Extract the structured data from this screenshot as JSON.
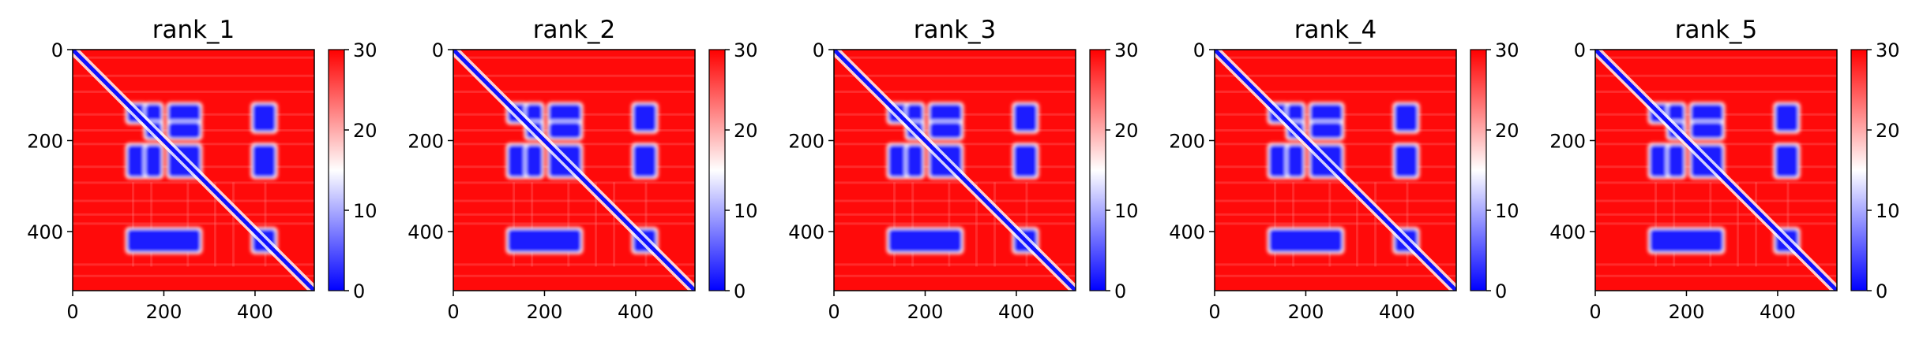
{
  "chart_data": [
    {
      "type": "heatmap",
      "title": "rank_1",
      "xlim": [
        0,
        530
      ],
      "ylim": [
        530,
        0
      ],
      "xticks": [
        0,
        200,
        400
      ],
      "yticks": [
        0,
        200,
        400
      ],
      "colorbar": {
        "cmap": "bwr",
        "min": 0,
        "max": 30,
        "ticks": [
          0,
          10,
          20,
          30
        ]
      },
      "low_distance_regions": [
        [
          120,
          160,
          120,
          160
        ],
        [
          120,
          180,
          160,
          195
        ],
        [
          120,
          160,
          210,
          280
        ],
        [
          120,
          180,
          395,
          445
        ],
        [
          160,
          195,
          160,
          195
        ],
        [
          160,
          195,
          210,
          280
        ],
        [
          210,
          280,
          120,
          160
        ],
        [
          210,
          280,
          160,
          195
        ],
        [
          210,
          280,
          210,
          280
        ],
        [
          210,
          280,
          395,
          445
        ],
        [
          395,
          445,
          120,
          280
        ],
        [
          395,
          445,
          395,
          445
        ]
      ],
      "background_distance": 30,
      "diagonal_distance": 0
    },
    {
      "type": "heatmap",
      "title": "rank_2",
      "xlim": [
        0,
        530
      ],
      "ylim": [
        530,
        0
      ],
      "xticks": [
        0,
        200,
        400
      ],
      "yticks": [
        0,
        200,
        400
      ],
      "colorbar": {
        "cmap": "bwr",
        "min": 0,
        "max": 30,
        "ticks": [
          0,
          10,
          20,
          30
        ]
      },
      "low_distance_regions": [
        [
          120,
          160,
          120,
          160
        ],
        [
          120,
          180,
          160,
          195
        ],
        [
          120,
          160,
          210,
          280
        ],
        [
          120,
          180,
          395,
          445
        ],
        [
          160,
          195,
          160,
          195
        ],
        [
          160,
          195,
          210,
          280
        ],
        [
          210,
          280,
          120,
          160
        ],
        [
          210,
          280,
          160,
          195
        ],
        [
          210,
          280,
          210,
          280
        ],
        [
          210,
          280,
          395,
          445
        ],
        [
          395,
          445,
          120,
          280
        ],
        [
          395,
          445,
          395,
          445
        ]
      ],
      "background_distance": 30,
      "diagonal_distance": 0
    },
    {
      "type": "heatmap",
      "title": "rank_3",
      "xlim": [
        0,
        530
      ],
      "ylim": [
        530,
        0
      ],
      "xticks": [
        0,
        200,
        400
      ],
      "yticks": [
        0,
        200,
        400
      ],
      "colorbar": {
        "cmap": "bwr",
        "min": 0,
        "max": 30,
        "ticks": [
          0,
          10,
          20,
          30
        ]
      },
      "low_distance_regions": [
        [
          120,
          160,
          120,
          160
        ],
        [
          120,
          180,
          160,
          195
        ],
        [
          120,
          160,
          210,
          280
        ],
        [
          120,
          180,
          395,
          445
        ],
        [
          160,
          195,
          160,
          195
        ],
        [
          160,
          195,
          210,
          280
        ],
        [
          210,
          280,
          120,
          160
        ],
        [
          210,
          280,
          160,
          195
        ],
        [
          210,
          280,
          210,
          280
        ],
        [
          210,
          280,
          395,
          445
        ],
        [
          395,
          445,
          120,
          280
        ],
        [
          395,
          445,
          395,
          445
        ]
      ],
      "background_distance": 30,
      "diagonal_distance": 0
    },
    {
      "type": "heatmap",
      "title": "rank_4",
      "xlim": [
        0,
        530
      ],
      "ylim": [
        530,
        0
      ],
      "xticks": [
        0,
        200,
        400
      ],
      "yticks": [
        0,
        200,
        400
      ],
      "colorbar": {
        "cmap": "bwr",
        "min": 0,
        "max": 30,
        "ticks": [
          0,
          10,
          20,
          30
        ]
      },
      "low_distance_regions": [
        [
          120,
          160,
          120,
          160
        ],
        [
          120,
          180,
          160,
          195
        ],
        [
          120,
          160,
          210,
          280
        ],
        [
          120,
          180,
          395,
          445
        ],
        [
          160,
          195,
          160,
          195
        ],
        [
          160,
          195,
          210,
          280
        ],
        [
          210,
          280,
          120,
          160
        ],
        [
          210,
          280,
          160,
          195
        ],
        [
          210,
          280,
          210,
          280
        ],
        [
          210,
          280,
          395,
          445
        ],
        [
          395,
          445,
          120,
          280
        ],
        [
          395,
          445,
          395,
          445
        ]
      ],
      "background_distance": 30,
      "diagonal_distance": 0
    },
    {
      "type": "heatmap",
      "title": "rank_5",
      "xlim": [
        0,
        530
      ],
      "ylim": [
        530,
        0
      ],
      "xticks": [
        0,
        200,
        400
      ],
      "yticks": [
        0,
        200,
        400
      ],
      "colorbar": {
        "cmap": "bwr",
        "min": 0,
        "max": 30,
        "ticks": [
          0,
          10,
          20,
          30
        ]
      },
      "low_distance_regions": [
        [
          120,
          160,
          120,
          160
        ],
        [
          120,
          180,
          160,
          195
        ],
        [
          120,
          160,
          210,
          280
        ],
        [
          120,
          180,
          395,
          445
        ],
        [
          160,
          195,
          160,
          195
        ],
        [
          160,
          195,
          210,
          280
        ],
        [
          210,
          280,
          120,
          160
        ],
        [
          210,
          280,
          160,
          195
        ],
        [
          210,
          280,
          210,
          280
        ],
        [
          210,
          280,
          395,
          445
        ],
        [
          395,
          445,
          120,
          280
        ],
        [
          395,
          445,
          395,
          445
        ]
      ],
      "background_distance": 30,
      "diagonal_distance": 0
    }
  ]
}
